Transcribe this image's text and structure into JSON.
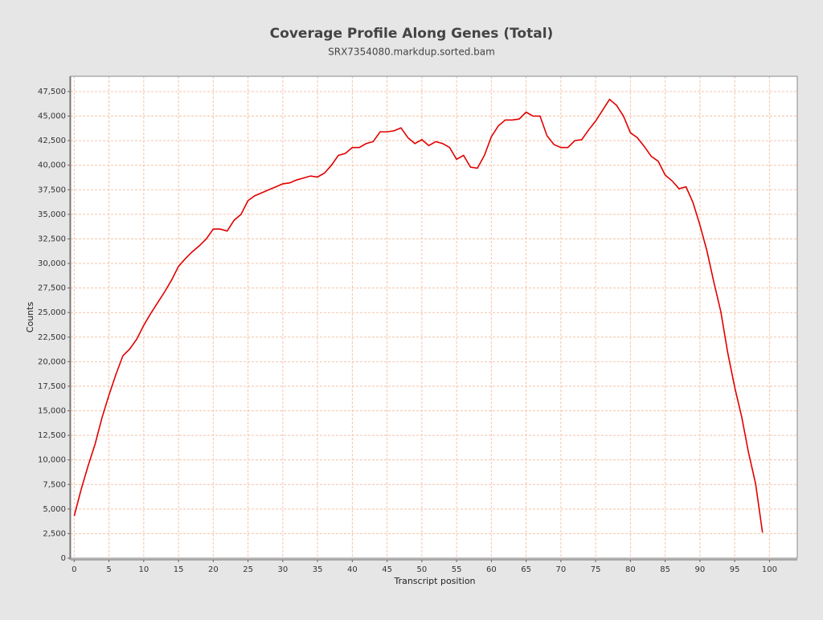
{
  "chart_data": {
    "type": "line",
    "title": "Coverage Profile Along Genes (Total)",
    "subtitle": "SRX7354080.markdup.sorted.bam",
    "x_label": "Transcript position",
    "y_label": "Counts",
    "grid": true,
    "x": [
      0,
      1,
      2,
      3,
      4,
      5,
      6,
      7,
      8,
      9,
      10,
      11,
      12,
      13,
      14,
      15,
      16,
      17,
      18,
      19,
      20,
      21,
      22,
      23,
      24,
      25,
      26,
      27,
      28,
      29,
      30,
      31,
      32,
      33,
      34,
      35,
      36,
      37,
      38,
      39,
      40,
      41,
      42,
      43,
      44,
      45,
      46,
      47,
      48,
      49,
      50,
      51,
      52,
      53,
      54,
      55,
      56,
      57,
      58,
      59,
      60,
      61,
      62,
      63,
      64,
      65,
      66,
      67,
      68,
      69,
      70,
      71,
      72,
      73,
      74,
      75,
      76,
      77,
      78,
      79,
      80,
      81,
      82,
      83,
      84,
      85,
      86,
      87,
      88,
      89,
      90,
      91,
      92,
      93,
      94,
      95,
      96,
      97,
      98,
      99
    ],
    "series": [
      {
        "color": "#e00000",
        "values": [
          4300,
          7000,
          9400,
          11600,
          14300,
          16600,
          18700,
          20600,
          21300,
          22300,
          23700,
          24900,
          26000,
          27100,
          28300,
          29700,
          30500,
          31200,
          31800,
          32500,
          33500,
          33500,
          33300,
          34400,
          35000,
          36400,
          36900,
          37200,
          37500,
          37800,
          38100,
          38200,
          38500,
          38700,
          38900,
          38800,
          39200,
          40000,
          41000,
          41200,
          41800,
          41800,
          42200,
          42400,
          43400,
          43400,
          43500,
          43800,
          42800,
          42200,
          42600,
          42000,
          42400,
          42200,
          41800,
          40600,
          41000,
          39800,
          39700,
          41000,
          42900,
          44000,
          44600,
          44600,
          44700,
          45400,
          45000,
          45000,
          43000,
          42100,
          41800,
          41800,
          42500,
          42600,
          43600,
          44500,
          45600,
          46700,
          46100,
          45000,
          43300,
          42800,
          41900,
          40900,
          40400,
          39000,
          38400,
          37600,
          37800,
          36200,
          33900,
          31300,
          28100,
          25100,
          20900,
          17400,
          14400,
          10700,
          7600,
          2600
        ]
      }
    ],
    "xlim": [
      -0.5,
      104
    ],
    "ylim": [
      0,
      49050
    ],
    "xticks": [
      0,
      5,
      10,
      15,
      20,
      25,
      30,
      35,
      40,
      45,
      50,
      55,
      60,
      65,
      70,
      75,
      80,
      85,
      90,
      95,
      100
    ],
    "yticks": [
      0,
      {
        "value": 2500,
        "label": "2,500"
      },
      {
        "value": 5000,
        "label": "5,000"
      },
      {
        "value": 7500,
        "label": "7,500"
      },
      {
        "value": 10000,
        "label": "10,000"
      },
      {
        "value": 12500,
        "label": "12,500"
      },
      {
        "value": 15000,
        "label": "15,000"
      },
      {
        "value": 17500,
        "label": "17,500"
      },
      {
        "value": 20000,
        "label": "20,000"
      },
      {
        "value": 22500,
        "label": "22,500"
      },
      {
        "value": 25000,
        "label": "25,000"
      },
      {
        "value": 27500,
        "label": "27,500"
      },
      {
        "value": 30000,
        "label": "30,000"
      },
      {
        "value": 32500,
        "label": "32,500"
      },
      {
        "value": 35000,
        "label": "35,000"
      },
      {
        "value": 37500,
        "label": "37,500"
      },
      {
        "value": 40000,
        "label": "40,000"
      },
      {
        "value": 42500,
        "label": "42,500"
      },
      {
        "value": 45000,
        "label": "45,000"
      },
      {
        "value": 47500,
        "label": "47,500"
      }
    ]
  }
}
